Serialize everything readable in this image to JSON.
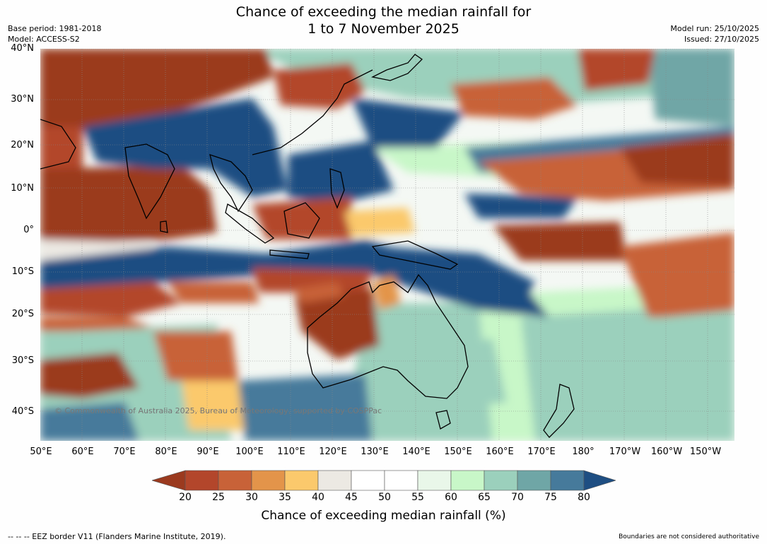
{
  "title_line1": "Chance of exceeding the median rainfall for",
  "title_line2": "1 to 7 November 2025",
  "base_period": "Base period: 1981-2018",
  "model": "Model: ACCESS-S2",
  "model_run": "Model run: 25/10/2025",
  "issued": "Issued: 27/10/2025",
  "lat_labels": [
    "40°N",
    "30°N",
    "20°N",
    "10°N",
    "0°",
    "10°S",
    "20°S",
    "30°S",
    "40°S"
  ],
  "lon_labels": [
    "50°E",
    "60°E",
    "70°E",
    "80°E",
    "90°E",
    "100°E",
    "110°E",
    "120°E",
    "130°E",
    "140°E",
    "150°E",
    "160°E",
    "170°E",
    "180°",
    "170°W",
    "160°W",
    "150°W"
  ],
  "colorbar": {
    "ticks": [
      "20",
      "25",
      "30",
      "35",
      "40",
      "45",
      "50",
      "55",
      "60",
      "65",
      "70",
      "75",
      "80"
    ],
    "colors": [
      "#9b3a1f",
      "#b3462b",
      "#c86238",
      "#e3944a",
      "#fbc96c",
      "#ece9e3",
      "#ffffff",
      "#ffffff",
      "#e9f7e9",
      "#c8f7c8",
      "#9bd0bc",
      "#6fa6a6",
      "#467a9b",
      "#1e4e82"
    ],
    "label": "Chance of exceeding median rainfall (%)"
  },
  "copyright": "© Commonwealth of Australia 2025, Bureau of Meteorology, supported by COSPPac",
  "footer_left": "--  --  -- EEZ border V11 (Flanders Marine Institute, 2019).",
  "footer_right": "Boundaries are not considered authoritative"
}
